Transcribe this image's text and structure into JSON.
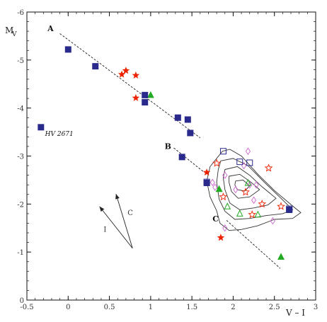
{
  "chart_data": {
    "type": "scatter",
    "xlabel": "V – I",
    "ylabel_main": "M",
    "ylabel_sub": "V",
    "xlim": [
      -0.5,
      3.0
    ],
    "ylim": [
      0,
      -6
    ],
    "x_ticks": [
      -0.5,
      0,
      0.5,
      1,
      1.5,
      2,
      2.5,
      3
    ],
    "x_tick_labels": [
      "-0.5",
      "0",
      "0.5",
      "1",
      "1.5",
      "2",
      "2.5",
      "3"
    ],
    "y_ticks": [
      0,
      -1,
      -2,
      -3,
      -4,
      -5,
      -6
    ],
    "y_tick_labels": [
      "0",
      "-1",
      "-2",
      "-3",
      "-4",
      "-5",
      "-6"
    ],
    "grid": false,
    "colors": {
      "squares": "#2a2a8c",
      "stars": "#ee2200",
      "triangles": "#22aa22",
      "diamonds": "#cc66cc",
      "contours": "#333333",
      "lines": "#222222"
    },
    "series": [
      {
        "marker": "filled-square",
        "points": [
          {
            "x": 0.0,
            "y": -5.22
          },
          {
            "x": 0.33,
            "y": -4.87
          },
          {
            "x": 0.93,
            "y": -4.27
          },
          {
            "x": 0.93,
            "y": -4.12
          },
          {
            "x": 1.33,
            "y": -3.8
          },
          {
            "x": 1.45,
            "y": -3.76
          },
          {
            "x": 1.48,
            "y": -3.48
          },
          {
            "x": 1.38,
            "y": -2.98
          },
          {
            "x": 1.68,
            "y": -2.44
          },
          {
            "x": -0.33,
            "y": -3.6
          },
          {
            "x": 2.68,
            "y": -1.88
          }
        ]
      },
      {
        "marker": "filled-star",
        "points": [
          {
            "x": 0.65,
            "y": -4.7
          },
          {
            "x": 0.7,
            "y": -4.78
          },
          {
            "x": 0.82,
            "y": -4.68
          },
          {
            "x": 0.82,
            "y": -4.21
          },
          {
            "x": 1.68,
            "y": -2.66
          },
          {
            "x": 1.85,
            "y": -1.3
          }
        ]
      },
      {
        "marker": "filled-triangle",
        "points": [
          {
            "x": 1.0,
            "y": -4.27
          },
          {
            "x": 1.83,
            "y": -2.31
          },
          {
            "x": 2.58,
            "y": -0.9
          }
        ]
      },
      {
        "marker": "open-square",
        "points": [
          {
            "x": 1.88,
            "y": -3.1
          },
          {
            "x": 2.08,
            "y": -2.88
          },
          {
            "x": 2.2,
            "y": -2.86
          },
          {
            "x": 1.68,
            "y": -2.46
          },
          {
            "x": 2.68,
            "y": -1.9
          }
        ]
      },
      {
        "marker": "open-star",
        "points": [
          {
            "x": 1.8,
            "y": -2.85
          },
          {
            "x": 2.43,
            "y": -2.75
          },
          {
            "x": 2.15,
            "y": -2.25
          },
          {
            "x": 1.88,
            "y": -2.15
          },
          {
            "x": 2.23,
            "y": -1.78
          },
          {
            "x": 2.35,
            "y": -2.0
          },
          {
            "x": 2.58,
            "y": -1.95
          }
        ]
      },
      {
        "marker": "open-triangle",
        "points": [
          {
            "x": 1.93,
            "y": -1.95
          },
          {
            "x": 2.3,
            "y": -1.78
          },
          {
            "x": 2.08,
            "y": -1.8
          },
          {
            "x": 2.18,
            "y": -2.44
          }
        ]
      },
      {
        "marker": "open-diamond",
        "points": [
          {
            "x": 2.18,
            "y": -3.1
          },
          {
            "x": 1.75,
            "y": -2.45
          },
          {
            "x": 2.2,
            "y": -2.4
          },
          {
            "x": 2.28,
            "y": -2.4
          },
          {
            "x": 2.13,
            "y": -2.8
          },
          {
            "x": 1.9,
            "y": -2.6
          },
          {
            "x": 2.03,
            "y": -2.3
          },
          {
            "x": 2.25,
            "y": -2.08
          },
          {
            "x": 1.9,
            "y": -1.5
          },
          {
            "x": 2.48,
            "y": -1.65
          },
          {
            "x": 1.78,
            "y": -2.35
          }
        ]
      }
    ],
    "lines": [
      {
        "label": "A",
        "x": [
          -0.1,
          1.6
        ],
        "y": [
          -5.55,
          -3.38
        ],
        "label_at": {
          "x": -0.25,
          "y": -5.6
        }
      },
      {
        "label": "B",
        "x": [
          1.28,
          1.65
        ],
        "y": [
          -3.17,
          -2.66
        ],
        "label_at": {
          "x": 1.17,
          "y": -3.15
        }
      },
      {
        "label": "C",
        "x": [
          1.92,
          2.57
        ],
        "y": [
          -1.66,
          -0.66
        ],
        "label_at": {
          "x": 1.75,
          "y": -1.64
        }
      }
    ],
    "reddening_vectors": {
      "origin": {
        "x": 0.78,
        "y": -1.08
      },
      "arrows": [
        {
          "label": "I",
          "to": {
            "x": 0.38,
            "y": -1.95
          },
          "label_at": {
            "x": 0.43,
            "y": -1.42
          }
        },
        {
          "label": "C",
          "to": {
            "x": 0.58,
            "y": -2.21
          },
          "label_at": {
            "x": 0.72,
            "y": -1.77
          }
        }
      ]
    },
    "annotations": [
      {
        "text": "HV 2671",
        "x": -0.28,
        "y": -3.42
      }
    ],
    "contours": [
      [
        [
          1.87,
          -3.1
        ],
        [
          1.96,
          -3.14
        ],
        [
          2.1,
          -3.0
        ],
        [
          2.3,
          -2.62
        ],
        [
          2.5,
          -2.28
        ],
        [
          2.72,
          -1.96
        ],
        [
          2.82,
          -1.82
        ],
        [
          2.72,
          -1.7
        ],
        [
          2.5,
          -1.68
        ],
        [
          2.3,
          -1.55
        ],
        [
          2.1,
          -1.47
        ],
        [
          1.95,
          -1.45
        ],
        [
          1.84,
          -1.6
        ],
        [
          1.8,
          -1.86
        ],
        [
          1.72,
          -2.15
        ],
        [
          1.68,
          -2.48
        ],
        [
          1.72,
          -2.78
        ],
        [
          1.87,
          -3.1
        ]
      ],
      [
        [
          1.85,
          -2.9
        ],
        [
          2.0,
          -2.95
        ],
        [
          2.18,
          -2.8
        ],
        [
          2.38,
          -2.45
        ],
        [
          2.58,
          -2.12
        ],
        [
          2.72,
          -1.88
        ],
        [
          2.6,
          -1.8
        ],
        [
          2.4,
          -1.76
        ],
        [
          2.2,
          -1.7
        ],
        [
          2.02,
          -1.68
        ],
        [
          1.9,
          -1.85
        ],
        [
          1.83,
          -2.1
        ],
        [
          1.8,
          -2.45
        ],
        [
          1.82,
          -2.72
        ],
        [
          1.85,
          -2.9
        ]
      ],
      [
        [
          1.9,
          -2.72
        ],
        [
          2.05,
          -2.78
        ],
        [
          2.2,
          -2.6
        ],
        [
          2.35,
          -2.36
        ],
        [
          2.52,
          -2.12
        ],
        [
          2.42,
          -1.98
        ],
        [
          2.25,
          -1.92
        ],
        [
          2.08,
          -1.88
        ],
        [
          1.96,
          -2.02
        ],
        [
          1.9,
          -2.3
        ],
        [
          1.88,
          -2.55
        ],
        [
          1.9,
          -2.72
        ]
      ],
      [
        [
          1.95,
          -2.58
        ],
        [
          2.08,
          -2.62
        ],
        [
          2.22,
          -2.45
        ],
        [
          2.32,
          -2.3
        ],
        [
          2.2,
          -2.15
        ],
        [
          2.06,
          -2.12
        ],
        [
          1.98,
          -2.26
        ],
        [
          1.95,
          -2.45
        ],
        [
          1.95,
          -2.58
        ]
      ],
      [
        [
          2.03,
          -2.48
        ],
        [
          2.12,
          -2.5
        ],
        [
          2.2,
          -2.38
        ],
        [
          2.14,
          -2.27
        ],
        [
          2.05,
          -2.3
        ],
        [
          2.02,
          -2.4
        ],
        [
          2.03,
          -2.48
        ]
      ]
    ]
  }
}
